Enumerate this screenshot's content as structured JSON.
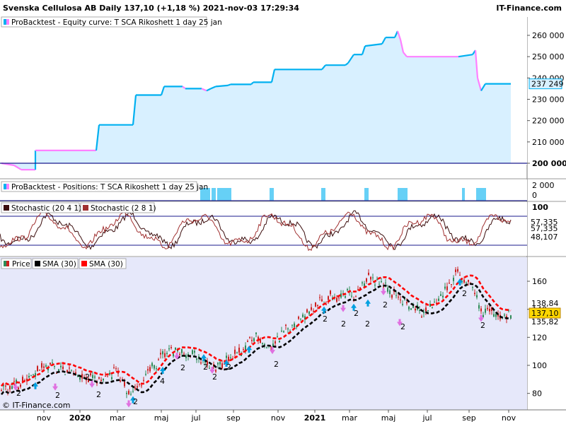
{
  "header": {
    "title": "Svenska Cellulosa AB Daily 137,10 (+1,18 %) 2021-nov-03 17:29:34",
    "brand": "IT-Finance.com"
  },
  "colors": {
    "equity_up": "#00b0f0",
    "equity_down": "#ff80ff",
    "equity_fill": "#d8f0ff",
    "price_bg": "#e6e8fa",
    "sma_black": "#000000",
    "sma_red": "#ff0000",
    "stoch_line": "#6b1b1b",
    "hline": "#1a1a8c",
    "candle_up": "#2e8b57",
    "candle_down": "#cc2020",
    "arrow_buy": "#00a0e0",
    "arrow_sell": "#e070e0"
  },
  "panels": {
    "equity": {
      "legend": "ProBacktest - Equity curve: T SCA Rikoshett 1 day 25 jan",
      "ticks": [
        "260 000",
        "250 000",
        "240 000",
        "230 000",
        "220 000",
        "210 000",
        "200 000"
      ],
      "tick_values": [
        260000,
        250000,
        240000,
        230000,
        220000,
        210000,
        200000
      ],
      "current_label": "237 249",
      "baseline_label": "200 000"
    },
    "positions": {
      "legend": "ProBacktest - Positions: T SCA Rikoshett 1 day 25 jan",
      "ticks": [
        "2 000",
        "0"
      ]
    },
    "stochastic": {
      "legend_a": "Stochastic (20 4 1)",
      "legend_b": "Stochastic (2 8 1)",
      "ticks": [
        "100"
      ],
      "value_labels": [
        "57,335",
        "57,335",
        "48,107"
      ]
    },
    "price": {
      "legend_price": "Price",
      "legend_sma1": "SMA (30)",
      "legend_sma2": "SMA (30)",
      "ticks": [
        "160",
        "140",
        "120",
        "100",
        "80"
      ],
      "tick_values": [
        160,
        140,
        120,
        100,
        80
      ],
      "value_labels": [
        "138,84",
        "137,10",
        "135,82"
      ],
      "watermark": "© IT-Finance.com"
    }
  },
  "time_axis": {
    "labels": [
      "nov",
      "2020",
      "mar",
      "maj",
      "jul",
      "sep",
      "nov",
      "2021",
      "mar",
      "maj",
      "jul",
      "sep",
      "nov"
    ],
    "bold": [
      false,
      true,
      false,
      false,
      false,
      false,
      false,
      true,
      false,
      false,
      false,
      false,
      false
    ]
  },
  "signals": {
    "labels": [
      "2",
      "2",
      "2",
      "2",
      "4",
      "2",
      "2",
      "2",
      "2",
      "2",
      "2",
      "2",
      "2",
      "2",
      "2",
      "2",
      "2",
      "2",
      "2"
    ]
  }
}
